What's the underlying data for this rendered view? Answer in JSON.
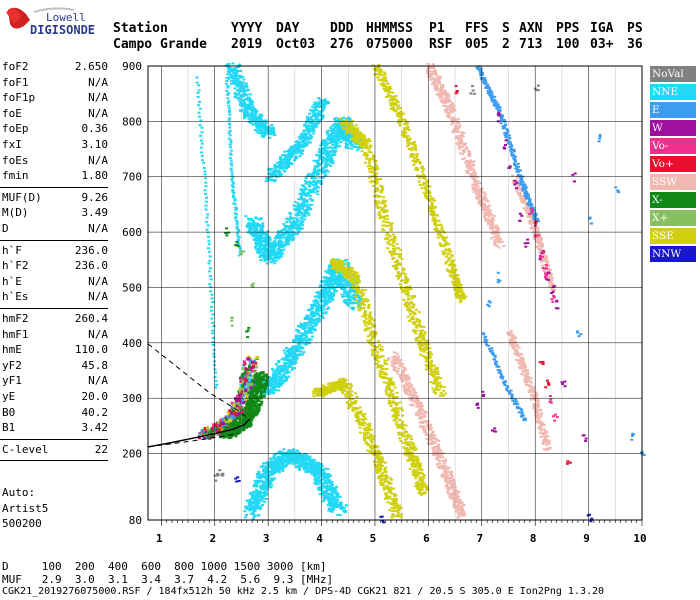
{
  "logo": {
    "line1": "Lowell",
    "line2": "DIGISONDE"
  },
  "header": {
    "labels": [
      "Station",
      "YYYY",
      "DAY",
      "DDD",
      "HHMMSS",
      "P1",
      "FFS",
      "S",
      "AXN",
      "PPS",
      "IGA",
      "PS"
    ],
    "values": [
      "Campo Grande",
      "2019",
      "Oct03",
      "276",
      "075000",
      "RSF",
      "005",
      "2",
      "713",
      "100",
      "03+",
      "36"
    ]
  },
  "params": [
    {
      "group": [
        {
          "name": "foF2",
          "value": "2.650"
        },
        {
          "name": "foF1",
          "value": "N/A"
        },
        {
          "name": "foF1p",
          "value": "N/A"
        },
        {
          "name": "foE",
          "value": "N/A"
        },
        {
          "name": "foEp",
          "value": "0.36"
        },
        {
          "name": "fxI",
          "value": "3.10"
        },
        {
          "name": "foEs",
          "value": "N/A"
        },
        {
          "name": "fmin",
          "value": "1.80"
        }
      ]
    },
    {
      "group": [
        {
          "name": "MUF(D)",
          "value": "9.26"
        },
        {
          "name": "M(D)",
          "value": "3.49"
        },
        {
          "name": "D",
          "value": "N/A"
        }
      ]
    },
    {
      "group": [
        {
          "name": "h`F",
          "value": "236.0"
        },
        {
          "name": "h`F2",
          "value": "236.0"
        },
        {
          "name": "h`E",
          "value": "N/A"
        },
        {
          "name": "h`Es",
          "value": "N/A"
        }
      ]
    },
    {
      "group": [
        {
          "name": "hmF2",
          "value": "260.4"
        },
        {
          "name": "hmF1",
          "value": "N/A"
        },
        {
          "name": "hmE",
          "value": "110.0"
        },
        {
          "name": "yF2",
          "value": "45.8"
        },
        {
          "name": "yF1",
          "value": "N/A"
        },
        {
          "name": "yE",
          "value": "20.0"
        },
        {
          "name": "B0",
          "value": "40.2"
        },
        {
          "name": "B1",
          "value": "3.42"
        }
      ]
    },
    {
      "group": [
        {
          "name": "C-level",
          "value": "22"
        }
      ]
    }
  ],
  "auto": {
    "l1": "Auto:",
    "l2": "Artist5",
    "l3": "500200"
  },
  "legend": [
    {
      "label": "NoVal",
      "color": "#808080"
    },
    {
      "label": "NNE",
      "color": "#22d8f5"
    },
    {
      "label": "E",
      "color": "#3c9cf0"
    },
    {
      "label": "W",
      "color": "#a0109c"
    },
    {
      "label": "Vo-",
      "color": "#f0308c"
    },
    {
      "label": "Vo+",
      "color": "#e8102c"
    },
    {
      "label": "SSW",
      "color": "#f0b8b0"
    },
    {
      "label": "X-",
      "color": "#108818"
    },
    {
      "label": "X+",
      "color": "#88c060"
    },
    {
      "label": "SSE",
      "color": "#d0d010"
    },
    {
      "label": "NNW",
      "color": "#1818c8"
    }
  ],
  "footer": {
    "row1": "D     100  200  400  600  800 1000 1500 3000 [km]",
    "row2": "MUF   2.9  3.0  3.1  3.4  3.7  4.2  5.6  9.3 [MHz]",
    "row3": "CGK21_2019276075000.RSF / 184fx512h 50 kHz 2.5 km / DPS-4D CGK21 821 / 20.5 S 305.0 E Ion2Png 1.3.20"
  },
  "chart_data": {
    "type": "scatter",
    "xlim": [
      0.75,
      10
    ],
    "ylim": [
      80,
      900
    ],
    "xticks": [
      1,
      2,
      3,
      4,
      5,
      6,
      7,
      8,
      9,
      10
    ],
    "yticks": [
      80,
      200,
      300,
      400,
      500,
      600,
      700,
      800,
      900
    ],
    "grid": true,
    "ordinary_trace": {
      "color": "#f0308c",
      "x": [
        1.8,
        2.0,
        2.2,
        2.4,
        2.55,
        2.65
      ],
      "y": [
        236,
        245,
        258,
        282,
        318,
        372
      ]
    },
    "extraordinary_trace": {
      "color": "#108818",
      "x": [
        2.2,
        2.4,
        2.6,
        2.75,
        2.85
      ],
      "y": [
        238,
        250,
        268,
        300,
        345
      ]
    },
    "profile_solid": {
      "x": [
        0.75,
        1.2,
        1.6,
        2.0,
        2.35,
        2.55,
        2.65
      ],
      "y": [
        212,
        220,
        228,
        236,
        244,
        252,
        262
      ]
    },
    "profile_dashed": [
      {
        "x": [
          0.75,
          1.3,
          1.9,
          2.4,
          2.65
        ],
        "y": [
          398,
          356,
          310,
          280,
          262
        ]
      },
      {
        "x": [
          0.75,
          1.3,
          1.8,
          2.2,
          2.45
        ],
        "y": [
          212,
          219,
          226,
          232,
          236
        ]
      }
    ],
    "waves": [
      {
        "series": "NNE",
        "color": "#22d8f5",
        "x": [
          2.65,
          3.0,
          3.4,
          3.9,
          4.3
        ],
        "y": [
          95,
          175,
          200,
          170,
          100
        ],
        "thick": 24
      },
      {
        "series": "NNE",
        "color": "#22d8f5",
        "x": [
          2.6,
          3.0,
          3.5,
          4.0,
          4.3,
          4.6
        ],
        "y": [
          330,
          320,
          390,
          480,
          545,
          470
        ],
        "thick": 24
      },
      {
        "series": "NNE",
        "color": "#22d8f5",
        "x": [
          2.7,
          3.0,
          3.5,
          4.0,
          4.35,
          4.6
        ],
        "y": [
          620,
          555,
          620,
          730,
          800,
          760
        ],
        "thick": 24
      },
      {
        "series": "NNE",
        "color": "#22d8f5",
        "x": [
          2.3,
          2.6,
          3.0
        ],
        "y": [
          900,
          820,
          780
        ],
        "thick": 20
      },
      {
        "series": "NNE",
        "color": "#22d8f5",
        "x": [
          3.0,
          3.6,
          4.0
        ],
        "y": [
          700,
          760,
          840
        ],
        "thick": 18
      },
      {
        "series": "SSE",
        "color": "#d0d010",
        "x": [
          3.9,
          4.4,
          5.0,
          5.4
        ],
        "y": [
          310,
          330,
          200,
          90
        ],
        "thick": 16
      },
      {
        "series": "SSE",
        "color": "#d0d010",
        "x": [
          4.2,
          4.6,
          5.1,
          5.6,
          5.9
        ],
        "y": [
          548,
          520,
          360,
          215,
          130
        ],
        "thick": 16
      },
      {
        "series": "SSE",
        "color": "#d0d010",
        "x": [
          4.4,
          4.8,
          5.3,
          5.8,
          6.2
        ],
        "y": [
          800,
          760,
          580,
          420,
          310
        ],
        "thick": 16
      },
      {
        "series": "SSE",
        "color": "#d0d010",
        "x": [
          5.0,
          5.5,
          6.0,
          6.4,
          6.6
        ],
        "y": [
          900,
          800,
          660,
          540,
          480
        ],
        "thick": 12
      },
      {
        "series": "SSW",
        "color": "#f0b8b0",
        "x": [
          5.3,
          5.8,
          6.3,
          6.6
        ],
        "y": [
          380,
          280,
          170,
          90
        ],
        "thick": 14
      },
      {
        "series": "SSW",
        "color": "#f0b8b0",
        "x": [
          6.0,
          6.4,
          6.9,
          7.3
        ],
        "y": [
          900,
          820,
          680,
          580
        ],
        "thick": 14
      },
      {
        "series": "SSW",
        "color": "#f0b8b0",
        "x": [
          7.6,
          8.0,
          8.3
        ],
        "y": [
          700,
          600,
          500
        ],
        "thick": 10
      },
      {
        "series": "SSW",
        "color": "#f0b8b0",
        "x": [
          7.5,
          7.9,
          8.2
        ],
        "y": [
          420,
          320,
          210
        ],
        "thick": 10
      },
      {
        "series": "E",
        "color": "#3c9cf0",
        "x": [
          6.9,
          7.3,
          7.7,
          8.0
        ],
        "y": [
          900,
          820,
          700,
          620
        ],
        "thick": 6
      },
      {
        "series": "E",
        "color": "#3c9cf0",
        "x": [
          7.0,
          7.4,
          7.8
        ],
        "y": [
          420,
          330,
          260
        ],
        "thick": 5
      },
      {
        "series": "NNE",
        "color": "#22d8f5",
        "x": [
          1.65,
          1.85,
          2.0
        ],
        "y": [
          880,
          600,
          320
        ],
        "thick": 3
      },
      {
        "series": "NNE",
        "color": "#22d8f5",
        "x": [
          2.2,
          2.3,
          2.45
        ],
        "y": [
          880,
          700,
          560
        ],
        "thick": 3
      }
    ],
    "scatter_groups": [
      {
        "series": "W",
        "color": "#a0109c",
        "x": [
          7.3,
          7.4,
          7.5,
          7.6,
          7.7,
          7.8,
          8.1,
          8.2,
          8.3,
          8.4,
          7.2,
          7.0,
          6.9,
          8.5,
          8.7,
          8.9
        ],
        "y": [
          810,
          760,
          720,
          690,
          630,
          580,
          560,
          520,
          500,
          470,
          250,
          310,
          290,
          330,
          700,
          230
        ]
      },
      {
        "series": "Vo-",
        "color": "#f0308c",
        "x": [
          7.9,
          8.0,
          8.1,
          8.15,
          8.2,
          8.3,
          8.25,
          8.35
        ],
        "y": [
          640,
          600,
          560,
          540,
          520,
          480,
          300,
          270
        ]
      },
      {
        "series": "Vo+",
        "color": "#e8102c",
        "x": [
          8.1,
          8.2,
          8.6,
          8.0,
          6.5
        ],
        "y": [
          360,
          330,
          180,
          620,
          860
        ]
      },
      {
        "series": "X-",
        "color": "#108818",
        "x": [
          2.2,
          2.4,
          2.6
        ],
        "y": [
          600,
          580,
          420
        ]
      },
      {
        "series": "X+",
        "color": "#88c060",
        "x": [
          2.5,
          2.7,
          2.3
        ],
        "y": [
          560,
          500,
          440
        ]
      },
      {
        "series": "E",
        "color": "#3c9cf0",
        "x": [
          7.1,
          7.3,
          9.2,
          9.5,
          9.8,
          10.0,
          9.0,
          8.8
        ],
        "y": [
          470,
          520,
          770,
          680,
          230,
          200,
          620,
          420
        ]
      },
      {
        "series": "NNW",
        "color": "#1818c8",
        "x": [
          5.1,
          9.0,
          2.4
        ],
        "y": [
          82,
          85,
          150
        ]
      },
      {
        "series": "NoVal",
        "color": "#808080",
        "x": [
          2.0,
          2.1,
          8.0,
          6.8
        ],
        "y": [
          160,
          165,
          860,
          860
        ]
      }
    ]
  }
}
